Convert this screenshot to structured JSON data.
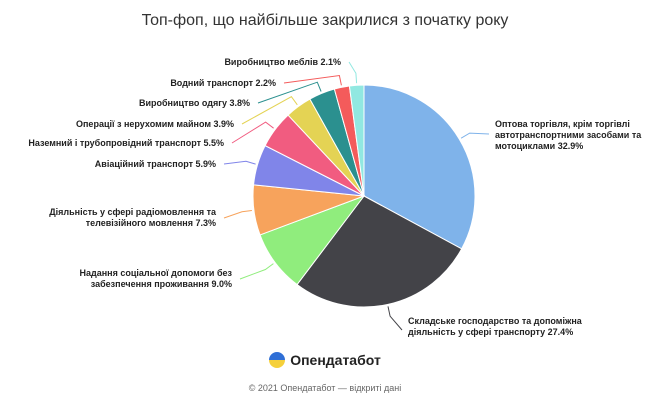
{
  "chart_data": {
    "type": "pie",
    "title": "Топ-фоп, що найбільше закрилися з початку року",
    "slices": [
      {
        "label": "Оптова торгівля, крім торгівлі автотранспортними засобами та мотоциклами",
        "label_lines": [
          "Оптова торгівля, крім торгівлі",
          "автотранспортними засобами та",
          "мотоциклами 32.9%"
        ],
        "value": 32.9,
        "color": "#7fb3ea"
      },
      {
        "label": "Складське господарство та допоміжна діяльність у сфері транспорту",
        "label_lines": [
          "Складське господарство та допоміжна",
          "діяльність у сфері транспорту 27.4%"
        ],
        "value": 27.4,
        "color": "#434348"
      },
      {
        "label": "Надання соціальної допомоги без забезпечення проживання",
        "label_lines": [
          "Надання соціальної допомоги без",
          "забезпечення проживання 9.0%"
        ],
        "value": 9.0,
        "color": "#90ed7d"
      },
      {
        "label": "Діяльність у сфері радіомовлення та телевізійного мовлення",
        "label_lines": [
          "Діяльність у сфері радіомовлення та",
          "телевізійного мовлення 7.3%"
        ],
        "value": 7.3,
        "color": "#f7a35c"
      },
      {
        "label": "Авіаційний транспорт",
        "label_lines": [
          "Авіаційний транспорт 5.9%"
        ],
        "value": 5.9,
        "color": "#8085e9"
      },
      {
        "label": "Наземний і трубопровідний транспорт",
        "label_lines": [
          "Наземний і трубопровідний транспорт 5.5%"
        ],
        "value": 5.5,
        "color": "#f15c80"
      },
      {
        "label": "Операції з нерухомим майном",
        "label_lines": [
          "Операції з нерухомим майном 3.9%"
        ],
        "value": 3.9,
        "color": "#e4d354"
      },
      {
        "label": "Виробництво одягу",
        "label_lines": [
          "Виробництво одягу 3.8%"
        ],
        "value": 3.8,
        "color": "#2b908f"
      },
      {
        "label": "Водний транспорт",
        "label_lines": [
          "Водний транспорт 2.2%"
        ],
        "value": 2.2,
        "color": "#f45b5b"
      },
      {
        "label": "Виробництво меблів",
        "label_lines": [
          "Виробництво меблів 2.1%"
        ],
        "value": 2.1,
        "color": "#91e8e1"
      }
    ]
  },
  "footer": {
    "brand": "Опендатабот",
    "copyright": "© 2021 Опендатабот — відкриті дані"
  }
}
